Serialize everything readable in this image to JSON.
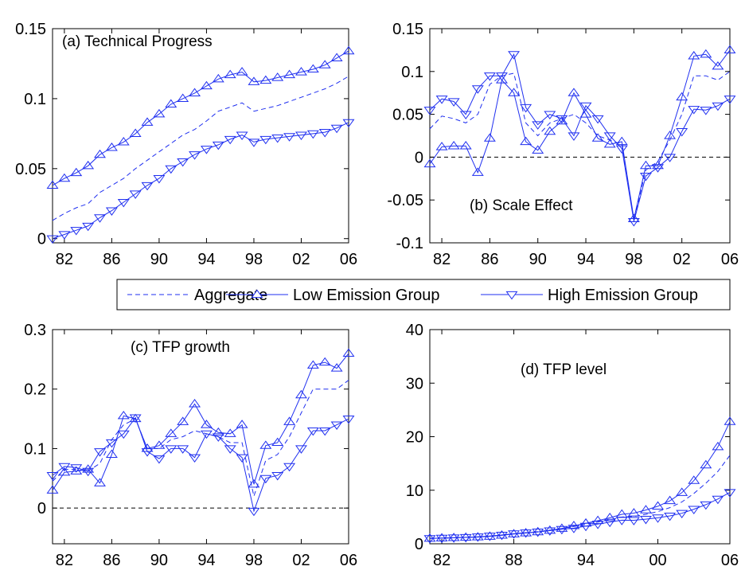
{
  "colors": {
    "series": "#1f2ff0",
    "zero_line": "#000000",
    "frame": "#000000"
  },
  "legend": {
    "items": [
      {
        "label": "Aggregate",
        "style": "dashed",
        "marker": "none"
      },
      {
        "label": "Low Emission Group",
        "style": "solid",
        "marker": "triangle-up"
      },
      {
        "label": "High Emission Group",
        "style": "solid",
        "marker": "triangle-down"
      }
    ]
  },
  "chart_data": [
    {
      "id": "a",
      "type": "line",
      "title": "(a) Technical Progress",
      "xlim": [
        1981,
        2006
      ],
      "ylim": [
        -0.003,
        0.15
      ],
      "xticks": [
        1982,
        1986,
        1990,
        1994,
        1998,
        2002,
        2006
      ],
      "xticklabels": [
        "82",
        "86",
        "90",
        "94",
        "98",
        "02",
        "06"
      ],
      "yticks": [
        0,
        0.05,
        0.1,
        0.15
      ],
      "yticklabels": [
        "0",
        "0.05",
        "0.1",
        "0.15"
      ],
      "zero_line": false,
      "x": [
        1981,
        1982,
        1983,
        1984,
        1985,
        1986,
        1987,
        1988,
        1989,
        1990,
        1991,
        1992,
        1993,
        1994,
        1995,
        1996,
        1997,
        1998,
        1999,
        2000,
        2001,
        2002,
        2003,
        2004,
        2005,
        2006
      ],
      "series": [
        {
          "name": "Aggregate",
          "values": [
            0.013,
            0.018,
            0.022,
            0.025,
            0.033,
            0.038,
            0.043,
            0.05,
            0.056,
            0.062,
            0.068,
            0.074,
            0.078,
            0.084,
            0.091,
            0.094,
            0.097,
            0.091,
            0.093,
            0.095,
            0.098,
            0.101,
            0.104,
            0.107,
            0.111,
            0.116
          ]
        },
        {
          "name": "Low Emission Group",
          "values": [
            0.038,
            0.043,
            0.047,
            0.052,
            0.06,
            0.065,
            0.069,
            0.075,
            0.083,
            0.089,
            0.096,
            0.1,
            0.104,
            0.109,
            0.114,
            0.117,
            0.119,
            0.112,
            0.113,
            0.115,
            0.117,
            0.119,
            0.121,
            0.124,
            0.129,
            0.134
          ]
        },
        {
          "name": "High Emission Group",
          "values": [
            0.0,
            0.003,
            0.006,
            0.009,
            0.015,
            0.02,
            0.026,
            0.032,
            0.038,
            0.043,
            0.05,
            0.055,
            0.06,
            0.064,
            0.067,
            0.071,
            0.074,
            0.069,
            0.071,
            0.072,
            0.073,
            0.074,
            0.075,
            0.076,
            0.079,
            0.083
          ]
        }
      ]
    },
    {
      "id": "b",
      "type": "line",
      "title": "(b) Scale Effect",
      "xlim": [
        1981,
        2006
      ],
      "ylim": [
        -0.1,
        0.15
      ],
      "xticks": [
        1982,
        1986,
        1990,
        1994,
        1998,
        2002,
        2006
      ],
      "xticklabels": [
        "82",
        "86",
        "90",
        "94",
        "98",
        "02",
        "06"
      ],
      "yticks": [
        -0.1,
        -0.05,
        0,
        0.05,
        0.1,
        0.15
      ],
      "yticklabels": [
        "-0.1",
        "-0.05",
        "0",
        "0.05",
        "0.1",
        "0.15"
      ],
      "zero_line": true,
      "x": [
        1981,
        1982,
        1983,
        1984,
        1985,
        1986,
        1987,
        1988,
        1989,
        1990,
        1991,
        1992,
        1993,
        1994,
        1995,
        1996,
        1997,
        1998,
        1999,
        2000,
        2001,
        2002,
        2003,
        2004,
        2005,
        2006
      ],
      "series": [
        {
          "name": "Aggregate",
          "values": [
            0.033,
            0.048,
            0.045,
            0.04,
            0.05,
            0.085,
            0.095,
            0.098,
            0.04,
            0.025,
            0.04,
            0.045,
            0.05,
            0.04,
            0.025,
            0.02,
            0.015,
            -0.074,
            -0.015,
            -0.005,
            0.02,
            0.05,
            0.095,
            0.095,
            0.09,
            0.1
          ]
        },
        {
          "name": "Low Emission Group",
          "values": [
            -0.008,
            0.012,
            0.013,
            0.013,
            -0.018,
            0.022,
            0.09,
            0.075,
            0.018,
            0.008,
            0.03,
            0.042,
            0.075,
            0.05,
            0.022,
            0.015,
            0.018,
            -0.072,
            -0.01,
            -0.01,
            0.025,
            0.07,
            0.118,
            0.12,
            0.106,
            0.125
          ]
        },
        {
          "name": "High Emission Group",
          "values": [
            0.055,
            0.068,
            0.065,
            0.05,
            0.08,
            0.095,
            0.095,
            0.12,
            0.058,
            0.038,
            0.05,
            0.045,
            0.025,
            0.06,
            0.045,
            0.025,
            0.01,
            -0.075,
            -0.022,
            -0.012,
            0.0,
            0.03,
            0.056,
            0.055,
            0.06,
            0.068
          ]
        }
      ]
    },
    {
      "id": "c",
      "type": "line",
      "title": "(c) TFP growth",
      "xlim": [
        1981,
        2006
      ],
      "ylim": [
        -0.06,
        0.3
      ],
      "xticks": [
        1982,
        1986,
        1990,
        1994,
        1998,
        2002,
        2006
      ],
      "xticklabels": [
        "82",
        "86",
        "90",
        "94",
        "98",
        "02",
        "06"
      ],
      "yticks": [
        0,
        0.1,
        0.2,
        0.3
      ],
      "yticklabels": [
        "0",
        "0.1",
        "0.2",
        "0.3"
      ],
      "zero_line": true,
      "x": [
        1981,
        1982,
        1983,
        1984,
        1985,
        1986,
        1987,
        1988,
        1989,
        1990,
        1991,
        1992,
        1993,
        1994,
        1995,
        1996,
        1997,
        1998,
        1999,
        2000,
        2001,
        2002,
        2003,
        2004,
        2005,
        2006
      ],
      "series": [
        {
          "name": "Aggregate",
          "values": [
            0.045,
            0.065,
            0.065,
            0.062,
            0.075,
            0.115,
            0.14,
            0.15,
            0.1,
            0.1,
            0.115,
            0.12,
            0.13,
            0.125,
            0.12,
            0.11,
            0.11,
            0.02,
            0.08,
            0.09,
            0.12,
            0.16,
            0.2,
            0.2,
            0.2,
            0.215
          ]
        },
        {
          "name": "Low Emission Group",
          "values": [
            0.03,
            0.06,
            0.062,
            0.065,
            0.042,
            0.09,
            0.155,
            0.15,
            0.1,
            0.105,
            0.125,
            0.145,
            0.175,
            0.14,
            0.127,
            0.125,
            0.14,
            0.04,
            0.105,
            0.11,
            0.145,
            0.19,
            0.24,
            0.245,
            0.235,
            0.26
          ]
        },
        {
          "name": "High Emission Group",
          "values": [
            0.055,
            0.07,
            0.068,
            0.062,
            0.095,
            0.11,
            0.125,
            0.152,
            0.095,
            0.083,
            0.1,
            0.1,
            0.085,
            0.125,
            0.12,
            0.1,
            0.085,
            -0.005,
            0.05,
            0.055,
            0.07,
            0.1,
            0.13,
            0.13,
            0.14,
            0.15
          ]
        }
      ]
    },
    {
      "id": "d",
      "type": "line",
      "title": "(d) TFP level",
      "xlim": [
        1981,
        2006
      ],
      "ylim": [
        0,
        40
      ],
      "xticks": [
        1982,
        1988,
        1994,
        2000,
        2006
      ],
      "xticklabels": [
        "82",
        "88",
        "94",
        "00",
        "06"
      ],
      "yticks": [
        0,
        10,
        20,
        30,
        40
      ],
      "yticklabels": [
        "0",
        "10",
        "20",
        "30",
        "40"
      ],
      "zero_line": false,
      "x": [
        1981,
        1982,
        1983,
        1984,
        1985,
        1986,
        1987,
        1988,
        1989,
        1990,
        1991,
        1992,
        1993,
        1994,
        1995,
        1996,
        1997,
        1998,
        1999,
        2000,
        2001,
        2002,
        2003,
        2004,
        2005,
        2006
      ],
      "series": [
        {
          "name": "Aggregate",
          "values": [
            1.0,
            1.05,
            1.12,
            1.19,
            1.28,
            1.43,
            1.63,
            1.88,
            2.07,
            2.28,
            2.55,
            2.85,
            3.22,
            3.62,
            4.06,
            4.5,
            5.0,
            5.1,
            5.5,
            6.0,
            6.75,
            7.8,
            9.4,
            11.3,
            13.5,
            16.5
          ]
        },
        {
          "name": "Low Emission Group",
          "values": [
            1.0,
            1.05,
            1.12,
            1.19,
            1.25,
            1.37,
            1.58,
            1.82,
            2.0,
            2.21,
            2.49,
            2.85,
            3.35,
            3.82,
            4.31,
            4.85,
            5.5,
            5.72,
            6.3,
            7.0,
            8.02,
            9.55,
            11.8,
            14.7,
            18.1,
            22.8
          ]
        },
        {
          "name": "High Emission Group",
          "values": [
            1.0,
            1.06,
            1.13,
            1.2,
            1.31,
            1.45,
            1.63,
            1.88,
            2.06,
            2.22,
            2.45,
            2.7,
            2.92,
            3.29,
            3.68,
            4.05,
            4.4,
            4.38,
            4.6,
            4.85,
            5.2,
            5.7,
            6.45,
            7.3,
            8.35,
            9.6
          ]
        }
      ]
    }
  ]
}
